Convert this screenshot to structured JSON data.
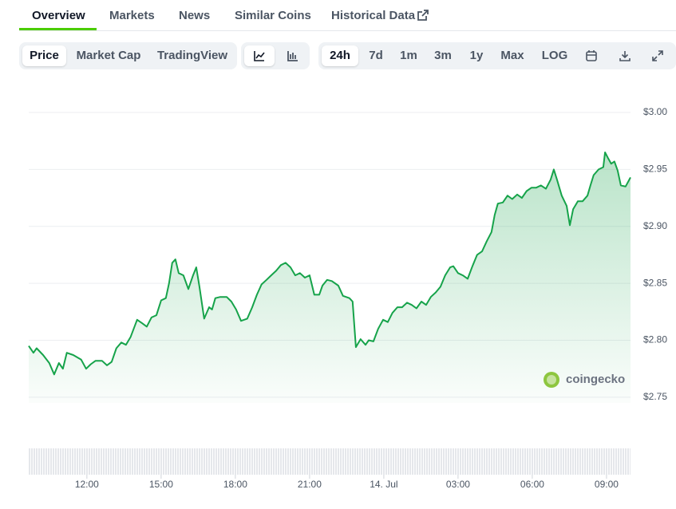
{
  "tabs": [
    "Overview",
    "Markets",
    "News",
    "Similar Coins",
    "Historical Data"
  ],
  "toolbar": {
    "chart_types": [
      "Price",
      "Market Cap",
      "TradingView"
    ],
    "ranges": [
      "24h",
      "7d",
      "1m",
      "3m",
      "1y",
      "Max",
      "LOG"
    ]
  },
  "watermark": "coingecko",
  "chart_data": {
    "type": "line",
    "color": "#16a34a",
    "x": [
      9.65,
      9.84,
      9.97,
      10.23,
      10.48,
      10.68,
      10.87,
      11.03,
      11.19,
      11.45,
      11.77,
      11.97,
      12.16,
      12.35,
      12.61,
      12.81,
      13.0,
      13.19,
      13.39,
      13.58,
      13.77,
      14.03,
      14.23,
      14.42,
      14.61,
      14.81,
      15.0,
      15.19,
      15.32,
      15.45,
      15.58,
      15.71,
      15.9,
      16.1,
      16.29,
      16.42,
      16.55,
      16.74,
      16.94,
      17.06,
      17.19,
      17.39,
      17.65,
      17.84,
      18.03,
      18.23,
      18.48,
      18.68,
      18.87,
      19.06,
      19.26,
      19.45,
      19.65,
      19.84,
      20.03,
      20.23,
      20.42,
      20.61,
      20.81,
      21.0,
      21.19,
      21.39,
      21.52,
      21.71,
      21.9,
      22.16,
      22.35,
      22.61,
      22.74,
      22.87,
      23.06,
      23.26,
      23.39,
      23.58,
      23.77,
      23.97,
      24.16,
      24.35,
      24.55,
      24.74,
      24.94,
      25.13,
      25.32,
      25.52,
      25.71,
      25.9,
      26.1,
      26.29,
      26.48,
      26.68,
      26.81,
      27.0,
      27.19,
      27.39,
      27.58,
      27.77,
      27.97,
      28.16,
      28.35,
      28.48,
      28.61,
      28.81,
      29.0,
      29.19,
      29.39,
      29.58,
      29.77,
      29.97,
      30.16,
      30.35,
      30.55,
      30.74,
      30.87,
      31.0,
      31.19,
      31.39,
      31.52,
      31.65,
      31.84,
      32.03,
      32.23,
      32.35,
      32.48,
      32.68,
      32.87,
      32.94,
      33.06,
      33.19,
      33.32,
      33.45,
      33.58,
      33.77,
      33.97
    ],
    "values": [
      2.795,
      2.789,
      2.793,
      2.787,
      2.78,
      2.77,
      2.78,
      2.775,
      2.789,
      2.787,
      2.783,
      2.775,
      2.779,
      2.782,
      2.782,
      2.778,
      2.781,
      2.793,
      2.798,
      2.796,
      2.803,
      2.818,
      2.815,
      2.812,
      2.82,
      2.822,
      2.835,
      2.837,
      2.85,
      2.868,
      2.871,
      2.859,
      2.857,
      2.845,
      2.857,
      2.864,
      2.847,
      2.819,
      2.829,
      2.827,
      2.837,
      2.838,
      2.838,
      2.834,
      2.827,
      2.817,
      2.819,
      2.829,
      2.84,
      2.849,
      2.853,
      2.857,
      2.861,
      2.866,
      2.868,
      2.864,
      2.857,
      2.859,
      2.855,
      2.857,
      2.84,
      2.84,
      2.848,
      2.853,
      2.852,
      2.848,
      2.839,
      2.837,
      2.834,
      2.794,
      2.801,
      2.796,
      2.8,
      2.799,
      2.81,
      2.818,
      2.816,
      2.824,
      2.829,
      2.829,
      2.833,
      2.831,
      2.828,
      2.834,
      2.831,
      2.838,
      2.842,
      2.847,
      2.857,
      2.864,
      2.865,
      2.859,
      2.857,
      2.854,
      2.865,
      2.875,
      2.878,
      2.887,
      2.895,
      2.91,
      2.92,
      2.921,
      2.927,
      2.924,
      2.928,
      2.925,
      2.931,
      2.934,
      2.934,
      2.936,
      2.933,
      2.941,
      2.95,
      2.941,
      2.927,
      2.918,
      2.901,
      2.915,
      2.922,
      2.922,
      2.927,
      2.936,
      2.945,
      2.95,
      2.952,
      2.965,
      2.96,
      2.955,
      2.957,
      2.949,
      2.936,
      2.935,
      2.943
    ],
    "xlim": [
      9.65,
      33.97
    ],
    "xticks": [
      {
        "value": 12,
        "label": "12:00"
      },
      {
        "value": 15,
        "label": "15:00"
      },
      {
        "value": 18,
        "label": "18:00"
      },
      {
        "value": 21,
        "label": "21:00"
      },
      {
        "value": 24,
        "label": "14. Jul"
      },
      {
        "value": 27,
        "label": "03:00"
      },
      {
        "value": 30,
        "label": "06:00"
      },
      {
        "value": 33,
        "label": "09:00"
      }
    ],
    "ylim": [
      2.745,
      3.0
    ],
    "yticks": [
      {
        "value": 2.75,
        "label": "$2.75"
      },
      {
        "value": 2.8,
        "label": "$2.80"
      },
      {
        "value": 2.85,
        "label": "$2.85"
      },
      {
        "value": 2.9,
        "label": "$2.90"
      },
      {
        "value": 2.95,
        "label": "$2.95"
      },
      {
        "value": 3.0,
        "label": "$3.00"
      }
    ],
    "grid": true
  }
}
